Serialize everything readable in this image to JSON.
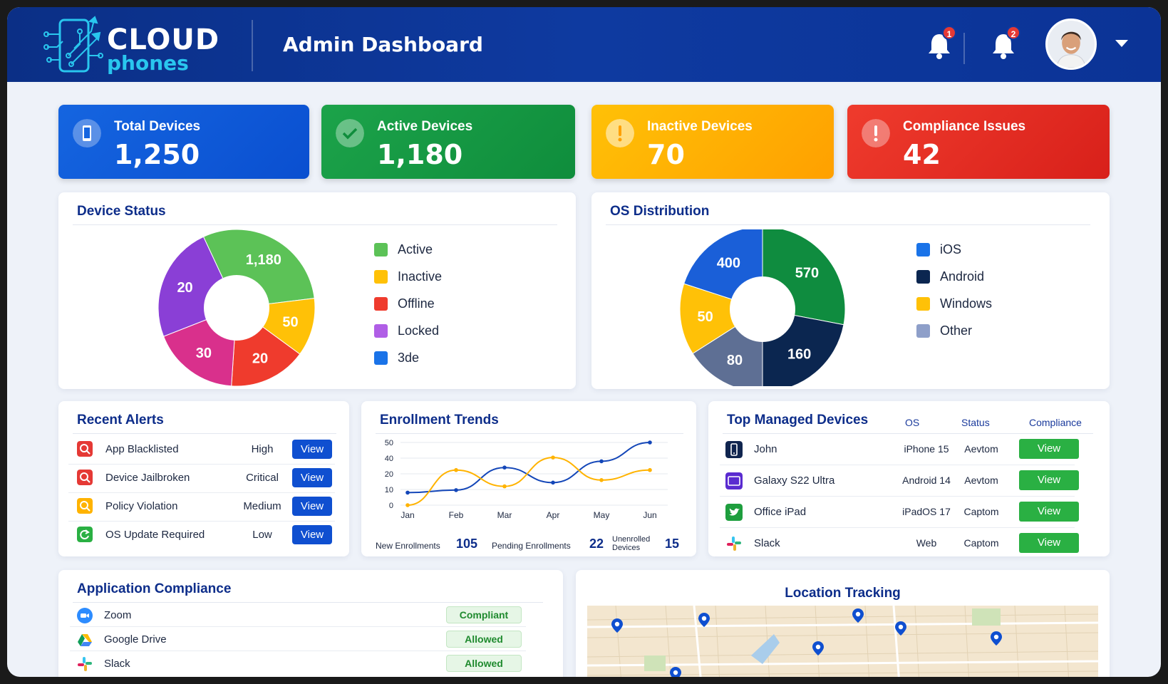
{
  "app": {
    "logo_word1": "CLOUD",
    "logo_word2": "phones",
    "page_title": "Admin Dashboard"
  },
  "header": {
    "notifications": [
      {
        "icon": "bell-icon",
        "count": "1"
      },
      {
        "icon": "bell-icon",
        "count": "2"
      }
    ],
    "user_menu_icon": "chevron-down-icon"
  },
  "stats": [
    {
      "label": "Total Devices",
      "value": "1,250",
      "icon": "phone-icon",
      "color": "#1565e0"
    },
    {
      "label": "Active Devices",
      "value": "1,180",
      "icon": "check-circle-icon",
      "color": "#1ca34a"
    },
    {
      "label": "Inactive Devices",
      "value": "70",
      "icon": "warning-circle-icon",
      "color": "#ffb300"
    },
    {
      "label": "Compliance Issues",
      "value": "42",
      "icon": "alert-circle-icon",
      "color": "#e62b22"
    }
  ],
  "device_status": {
    "title": "Device Status",
    "legend": [
      {
        "label": "Active",
        "color": "#5cc257"
      },
      {
        "label": "Inactive",
        "color": "#ffc107"
      },
      {
        "label": "Offline",
        "color": "#ef3b2d"
      },
      {
        "label": "Locked",
        "color": "#b05ee6"
      },
      {
        "label": "3de",
        "color": "#1a73e8"
      }
    ]
  },
  "os_distribution": {
    "title": "OS Distribution",
    "legend": [
      {
        "label": "iOS",
        "color": "#1a73e8"
      },
      {
        "label": "Android",
        "color": "#0b2650"
      },
      {
        "label": "Windows",
        "color": "#ffc107"
      },
      {
        "label": "Other",
        "color": "#8e9fc9"
      }
    ]
  },
  "chart_data": [
    {
      "type": "pie",
      "title": "Device Status",
      "slices": [
        {
          "label": "1,180",
          "value": 1180,
          "color": "#5cc257"
        },
        {
          "label": "50",
          "value": 50,
          "color": "#ffc107"
        },
        {
          "label": "20",
          "value": 20,
          "color": "#ef3b2d"
        },
        {
          "label": "30",
          "value": 30,
          "color": "#d9308c"
        },
        {
          "label": "20",
          "value": 20,
          "color": "#8a3fd6"
        }
      ],
      "display_fractions": [
        0.3,
        0.12,
        0.16,
        0.18,
        0.24
      ]
    },
    {
      "type": "pie",
      "title": "OS Distribution",
      "slices": [
        {
          "label": "570",
          "value": 570,
          "color": "#0f8c3f"
        },
        {
          "label": "160",
          "value": 160,
          "color": "#0b2650"
        },
        {
          "label": "80",
          "value": 80,
          "color": "#5e6f94"
        },
        {
          "label": "50",
          "value": 50,
          "color": "#ffc107"
        },
        {
          "label": "400",
          "value": 400,
          "color": "#1a5fd8"
        }
      ],
      "display_fractions": [
        0.28,
        0.22,
        0.16,
        0.14,
        0.2
      ]
    },
    {
      "type": "line",
      "title": "Enrollment Trends",
      "categories": [
        "Jan",
        "Feb",
        "Mar",
        "Apr",
        "May",
        "Jun"
      ],
      "y_ticks": [
        "50",
        "40",
        "20",
        "10",
        "0"
      ],
      "series": [
        {
          "color": "#1346b8",
          "values": [
            10,
            12,
            30,
            18,
            35,
            50
          ]
        },
        {
          "color": "#ffb300",
          "values": [
            0,
            28,
            15,
            38,
            20,
            28
          ]
        }
      ]
    }
  ],
  "recent_alerts": {
    "title": "Recent Alerts",
    "view_label": "View",
    "rows": [
      {
        "name": "App Blacklisted",
        "level": "High",
        "icon": "search-alert-icon",
        "color": "#e53935"
      },
      {
        "name": "Device Jailbroken",
        "level": "Critical",
        "icon": "search-alert-icon",
        "color": "#e53935"
      },
      {
        "name": "Policy Violation",
        "level": "Medium",
        "icon": "search-alert-icon",
        "color": "#ffb300"
      },
      {
        "name": "OS Update Required",
        "level": "Low",
        "icon": "refresh-icon",
        "color": "#2ab043"
      }
    ]
  },
  "enrollment": {
    "title": "Enrollment Trends",
    "new_label": "New Enrollments",
    "new_value": "105",
    "pending_label": "Pending Enrollments",
    "pending_value": "22",
    "unenrolled_label_1": "Unenrolled",
    "unenrolled_label_2": "Devices",
    "unenrolled_value": "15"
  },
  "top_devices": {
    "title": "Top Managed Devices",
    "columns": [
      "OS",
      "Status",
      "Compliance"
    ],
    "view_label": "View",
    "rows": [
      {
        "name": "John",
        "os": "iPhone 15",
        "status": "Aevtom",
        "icon": "phone-icon"
      },
      {
        "name": "Galaxy S22 Ultra",
        "os": "Android 14",
        "status": "Aevtom",
        "icon": "tablet-icon"
      },
      {
        "name": "Office iPad",
        "os": "iPadOS 17",
        "status": "Captom",
        "icon": "twitter-bird-icon"
      },
      {
        "name": "Slack",
        "os": "Web",
        "status": "Captom",
        "icon": "slack-icon"
      }
    ]
  },
  "app_compliance": {
    "title": "Application Compliance",
    "rows": [
      {
        "name": "Zoom",
        "status": "Compliant",
        "icon": "zoom-icon"
      },
      {
        "name": "Google Drive",
        "status": "Allowed",
        "icon": "google-drive-icon"
      },
      {
        "name": "Slack",
        "status": "Allowed",
        "icon": "slack-icon"
      }
    ]
  },
  "location": {
    "title": "Location Tracking",
    "marker_icon": "map-pin-icon"
  }
}
